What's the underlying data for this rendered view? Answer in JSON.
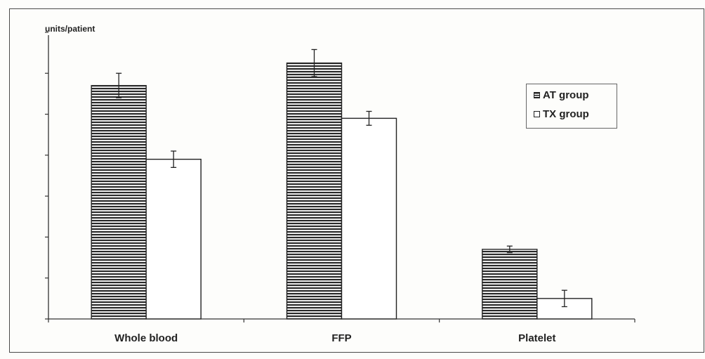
{
  "colors": {
    "at_bar": "#2a2a2a",
    "tx_bar": "#ffffff",
    "axis": "#333333",
    "background": "#fdfdfb"
  },
  "chart_data": {
    "type": "bar",
    "title": "",
    "xlabel": "",
    "ylabel": "units/patient",
    "categories": [
      "Whole blood",
      "FFP",
      "Platelet"
    ],
    "series": [
      {
        "name": "AT group",
        "values": [
          5.7,
          6.25,
          1.7
        ],
        "errors": [
          0.3,
          0.33,
          0.08
        ],
        "pattern": "horizontal-stripes"
      },
      {
        "name": "TX group",
        "values": [
          3.9,
          4.9,
          0.5
        ],
        "errors": [
          0.2,
          0.17,
          0.2
        ],
        "pattern": "solid-white"
      }
    ],
    "ylim": [
      0,
      7
    ],
    "y_ticks": [
      0,
      1,
      2,
      3,
      4,
      5,
      6,
      7
    ],
    "y_tick_labels_shown": false,
    "grid": false,
    "legend_position": "top-right"
  }
}
